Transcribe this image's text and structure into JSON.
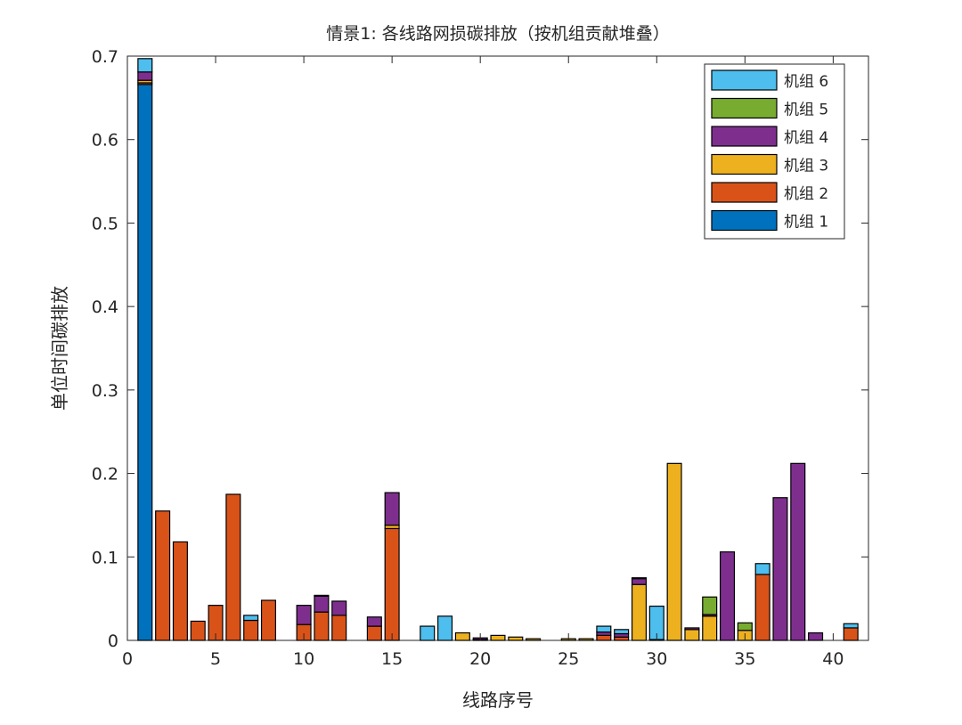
{
  "chart_data": {
    "type": "bar",
    "stacked": true,
    "title": "情景1: 各线路网损碳排放（按机组贡献堆叠）",
    "xlabel": "线路序号",
    "ylabel": "单位时间碳排放",
    "xlim": [
      0,
      42
    ],
    "ylim": [
      0,
      0.7
    ],
    "xticks": [
      0,
      5,
      10,
      15,
      20,
      25,
      30,
      35,
      40
    ],
    "yticks": [
      0,
      0.1,
      0.2,
      0.3,
      0.4,
      0.5,
      0.6,
      0.7
    ],
    "ytick_labels": [
      "0",
      "0.1",
      "0.2",
      "0.3",
      "0.4",
      "0.5",
      "0.6",
      "0.7"
    ],
    "legend_position": "top-right",
    "x": [
      1,
      2,
      3,
      4,
      5,
      6,
      7,
      8,
      9,
      10,
      11,
      12,
      13,
      14,
      15,
      16,
      17,
      18,
      19,
      20,
      21,
      22,
      23,
      24,
      25,
      26,
      27,
      28,
      29,
      30,
      31,
      32,
      33,
      34,
      35,
      36,
      37,
      38,
      39,
      40,
      41
    ],
    "series": [
      {
        "name": "机组 1",
        "color": "#0072BD",
        "values": [
          0.666,
          0,
          0,
          0,
          0,
          0,
          0,
          0,
          0,
          0,
          0,
          0,
          0,
          0,
          0,
          0,
          0,
          0,
          0,
          0.001,
          0,
          0,
          0,
          0,
          0,
          0,
          0,
          0,
          0,
          0.001,
          0,
          0,
          0,
          0,
          0,
          0,
          0,
          0,
          0,
          0,
          0
        ]
      },
      {
        "name": "机组 2",
        "color": "#D95319",
        "values": [
          0.002,
          0.155,
          0.118,
          0.023,
          0.042,
          0.175,
          0.024,
          0.048,
          0,
          0.019,
          0.034,
          0.03,
          0,
          0.017,
          0.134,
          0,
          0,
          0,
          0,
          0,
          0,
          0,
          0,
          0,
          0,
          0,
          0.006,
          0.004,
          0,
          0,
          0,
          0,
          0,
          0,
          0,
          0.079,
          0,
          0,
          0,
          0,
          0.015
        ]
      },
      {
        "name": "机组 3",
        "color": "#EDB120",
        "values": [
          0.003,
          0,
          0,
          0,
          0,
          0,
          0,
          0,
          0,
          0,
          0,
          0,
          0,
          0,
          0.004,
          0,
          0,
          0,
          0.009,
          0,
          0.006,
          0.004,
          0.002,
          0,
          0.002,
          0.002,
          0,
          0,
          0.067,
          0,
          0.212,
          0.013,
          0.029,
          0,
          0.012,
          0,
          0,
          0,
          0,
          0,
          0
        ]
      },
      {
        "name": "机组 4",
        "color": "#7E2F8E",
        "values": [
          0.01,
          0,
          0,
          0,
          0,
          0,
          0,
          0,
          0,
          0.023,
          0.019,
          0.017,
          0,
          0.011,
          0.039,
          0,
          0,
          0,
          0,
          0.002,
          0,
          0,
          0,
          0,
          0,
          0,
          0.004,
          0.004,
          0.007,
          0,
          0,
          0.002,
          0.002,
          0.106,
          0,
          0,
          0.171,
          0.212,
          0.009,
          0,
          0
        ]
      },
      {
        "name": "机组 5",
        "color": "#77AC30",
        "values": [
          0,
          0,
          0,
          0,
          0,
          0,
          0,
          0,
          0,
          0,
          0,
          0,
          0,
          0,
          0,
          0,
          0,
          0,
          0,
          0,
          0,
          0,
          0,
          0,
          0,
          0,
          0,
          0,
          0.001,
          0,
          0,
          0,
          0.021,
          0,
          0.009,
          0,
          0,
          0,
          0,
          0,
          0
        ]
      },
      {
        "name": "机组 6",
        "color": "#4DBEEE",
        "values": [
          0.016,
          0,
          0,
          0,
          0,
          0,
          0.006,
          0,
          0,
          0,
          0.001,
          0,
          0,
          0,
          0,
          0,
          0.017,
          0.029,
          0,
          0,
          0,
          0,
          0,
          0,
          0,
          0,
          0.007,
          0.005,
          0,
          0.04,
          0,
          0,
          0,
          0,
          0,
          0.013,
          0,
          0,
          0,
          0,
          0.005
        ]
      }
    ]
  }
}
